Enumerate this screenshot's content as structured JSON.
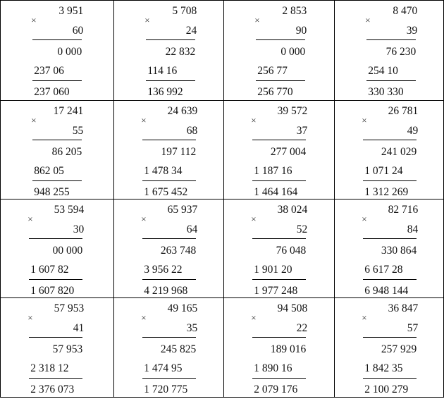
{
  "operator_symbol": "×",
  "problems": [
    {
      "a": "3 951",
      "b": "60",
      "p1": "0 000",
      "p2": "237 06",
      "result": "237 060"
    },
    {
      "a": "5 708",
      "b": "24",
      "p1": "22 832",
      "p2": "114 16",
      "result": "136 992"
    },
    {
      "a": "2 853",
      "b": "90",
      "p1": "0 000",
      "p2": "256 77",
      "result": "256 770"
    },
    {
      "a": "8 470",
      "b": "39",
      "p1": "76 230",
      "p2": "254 10",
      "result": "330 330"
    },
    {
      "a": "17 241",
      "b": "55",
      "p1": "86 205",
      "p2": "862 05",
      "result": "948 255"
    },
    {
      "a": "24 639",
      "b": "68",
      "p1": "197 112",
      "p2": "1 478 34",
      "result": "1 675 452"
    },
    {
      "a": "39 572",
      "b": "37",
      "p1": "277 004",
      "p2": "1 187 16",
      "result": "1 464 164"
    },
    {
      "a": "26 781",
      "b": "49",
      "p1": "241 029",
      "p2": "1 071 24",
      "result": "1 312 269"
    },
    {
      "a": "53 594",
      "b": "30",
      "p1": "00 000",
      "p2": "1 607 82",
      "result": "1 607 820"
    },
    {
      "a": "65 937",
      "b": "64",
      "p1": "263 748",
      "p2": "3 956 22",
      "result": "4 219 968"
    },
    {
      "a": "38 024",
      "b": "52",
      "p1": "76 048",
      "p2": "1 901 20",
      "result": "1 977 248"
    },
    {
      "a": "82 716",
      "b": "84",
      "p1": "330 864",
      "p2": "6 617 28",
      "result": "6 948 144"
    },
    {
      "a": "57 953",
      "b": "41",
      "p1": "57 953",
      "p2": "2 318 12",
      "result": "2 376 073"
    },
    {
      "a": "49 165",
      "b": "35",
      "p1": "245 825",
      "p2": "1 474 95",
      "result": "1 720 775"
    },
    {
      "a": "94 508",
      "b": "22",
      "p1": "189 016",
      "p2": "1 890 16",
      "result": "2 079 176"
    },
    {
      "a": "36 847",
      "b": "57",
      "p1": "257 929",
      "p2": "1 842 35",
      "result": "2 100 279"
    }
  ]
}
